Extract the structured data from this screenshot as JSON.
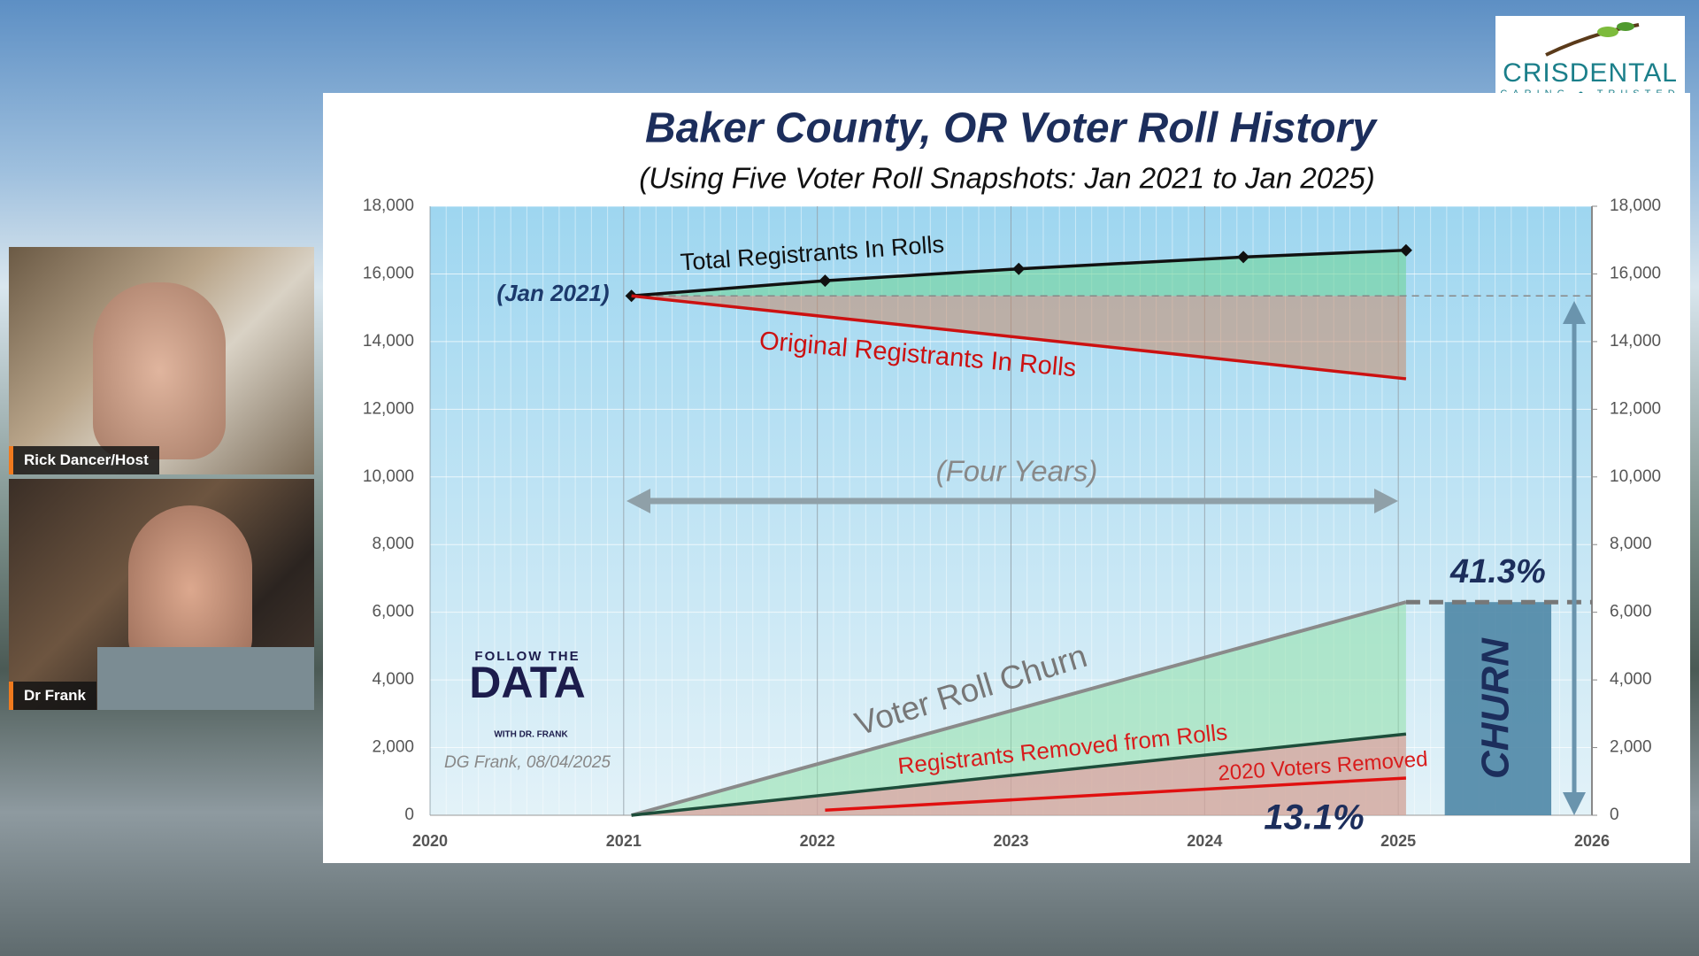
{
  "chart_data": {
    "type": "line",
    "title": "Baker County, OR Voter Roll History",
    "subtitle": "(Using Five Voter Roll Snapshots: Jan 2021 to Jan 2025)",
    "series": [
      {
        "name": "Total Registrants In Rolls",
        "color": "#111111",
        "markers": true,
        "x": [
          2021.04,
          2022.04,
          2023.04,
          2024.2,
          2025.04
        ],
        "values": [
          15350,
          15800,
          16150,
          16500,
          16700
        ]
      },
      {
        "name": "Original Registrants In Rolls",
        "color": "#cc1111",
        "x": [
          2021.04,
          2025.04
        ],
        "values": [
          15350,
          12900
        ]
      },
      {
        "name": "Voter Roll Churn",
        "color": "#8a8a8a",
        "x": [
          2021.04,
          2025.04
        ],
        "values": [
          0,
          6300
        ]
      },
      {
        "name": "Registrants Removed from Rolls",
        "color": "#1d4d3a",
        "x": [
          2021.04,
          2025.04
        ],
        "values": [
          0,
          2400
        ]
      },
      {
        "name": "2020 Voters Removed",
        "color": "#e01010",
        "x": [
          2022.04,
          2025.04
        ],
        "values": [
          150,
          1100
        ]
      }
    ],
    "churn_bar": {
      "x": [
        2025.24,
        2025.79
      ],
      "value": 6300,
      "color": "#4f87a6",
      "text": "CHURN",
      "label": "41.3%"
    },
    "annotations": [
      "(Jan 2021)",
      "(Four Years)",
      "13.1%"
    ],
    "footnote": "DG Frank, 08/04/2025",
    "brand": {
      "top": "FOLLOW THE",
      "main": "DATA",
      "bottom": "WITH DR. FRANK"
    },
    "xlim": [
      2020,
      2026
    ],
    "xticks": [
      2020,
      2021,
      2022,
      2023,
      2024,
      2025,
      2026
    ],
    "ylim": [
      0,
      18000
    ],
    "yticks": [
      0,
      {
        "value": 2000,
        "label": "2,000"
      },
      {
        "value": 4000,
        "label": "4,000"
      },
      {
        "value": 6000,
        "label": "6,000"
      },
      {
        "value": 8000,
        "label": "8,000"
      },
      {
        "value": 10000,
        "label": "10,000"
      },
      {
        "value": 12000,
        "label": "12,000"
      },
      {
        "value": 14000,
        "label": "14,000"
      },
      {
        "value": 16000,
        "label": "16,000"
      },
      {
        "value": 18000,
        "label": "18,000"
      }
    ],
    "y2lim": [
      0,
      18000
    ],
    "y2ticks": [
      0,
      {
        "value": 2000,
        "label": "2,000"
      },
      {
        "value": 4000,
        "label": "4,000"
      },
      {
        "value": 6000,
        "label": "6,000"
      },
      {
        "value": 8000,
        "label": "8,000"
      },
      {
        "value": 10000,
        "label": "10,000"
      },
      {
        "value": 12000,
        "label": "12,000"
      },
      {
        "value": 14000,
        "label": "14,000"
      },
      {
        "value": 16000,
        "label": "16,000"
      },
      {
        "value": 18000,
        "label": "18,000"
      }
    ],
    "grid": true
  },
  "participants": [
    {
      "name": "Rick Dancer/Host"
    },
    {
      "name": "Dr Frank"
    }
  ],
  "logo": {
    "name": "CRISDENTAL",
    "tagline": [
      "CARING",
      "TRUSTED"
    ]
  }
}
